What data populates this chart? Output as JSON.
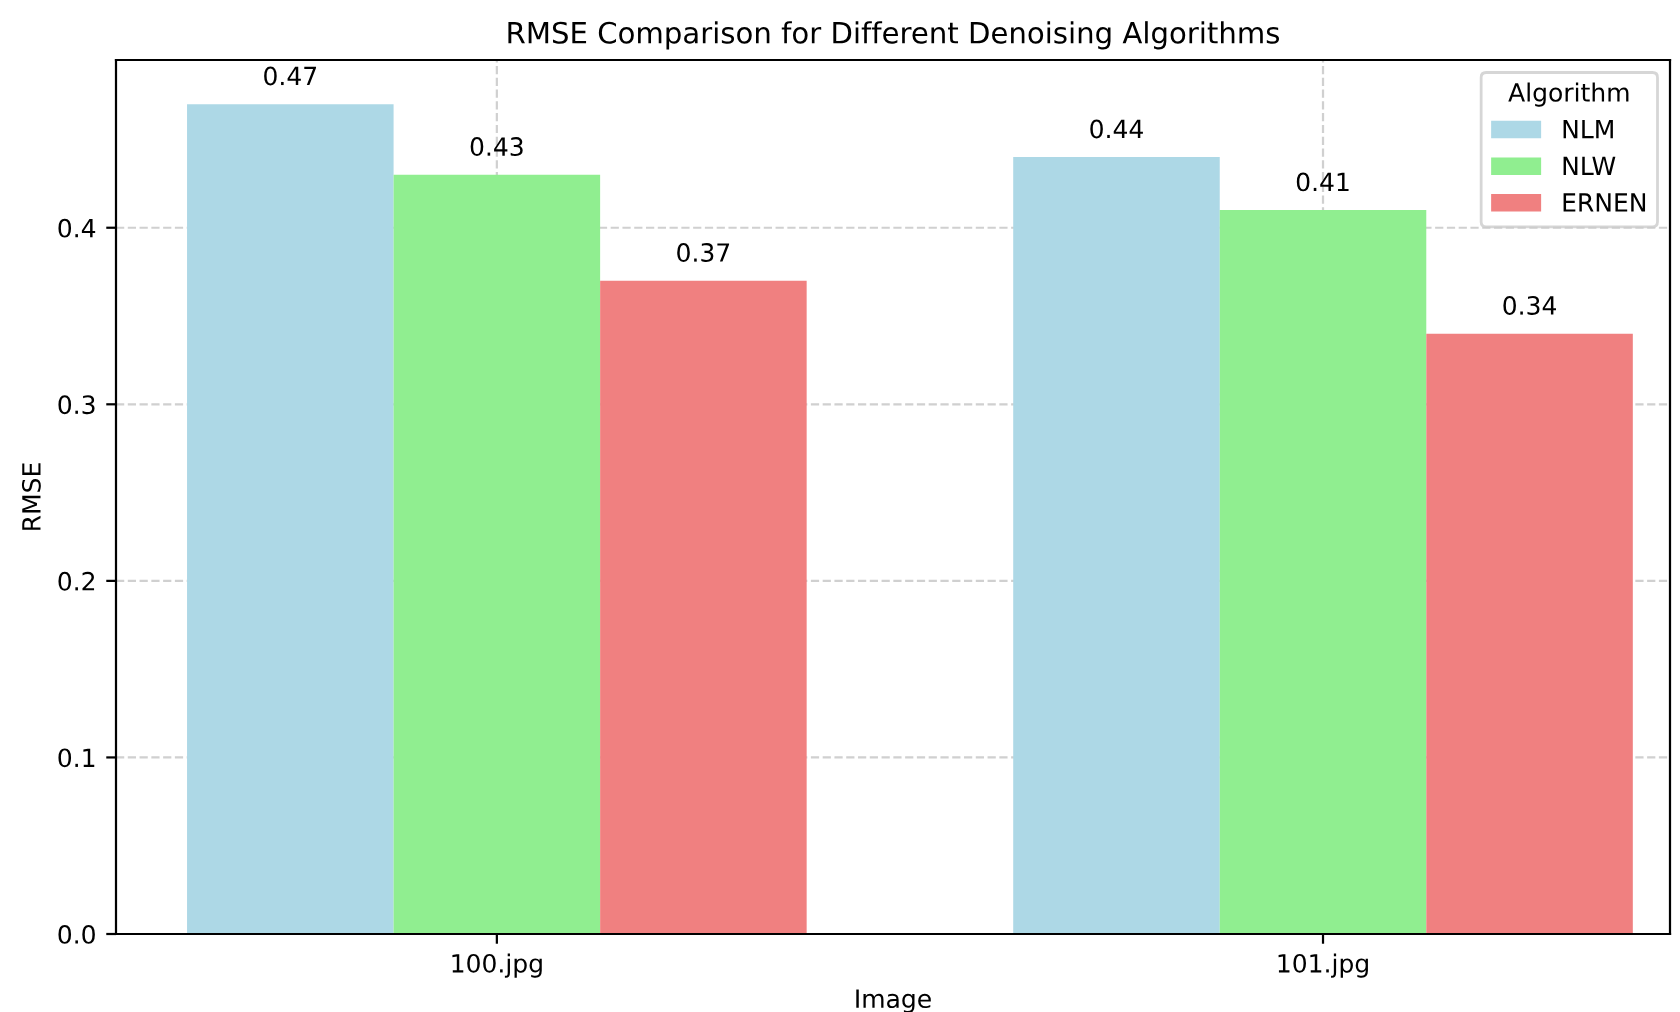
{
  "chart_data": {
    "type": "bar",
    "title": "RMSE Comparison for Different Denoising Algorithms",
    "xlabel": "Image",
    "ylabel": "RMSE",
    "legend_title": "Algorithm",
    "categories": [
      "100.jpg",
      "101.jpg"
    ],
    "series": [
      {
        "name": "NLM",
        "color": "#add8e6",
        "values": [
          0.47,
          0.44
        ]
      },
      {
        "name": "NLW",
        "color": "#90ee90",
        "values": [
          0.43,
          0.41
        ]
      },
      {
        "name": "ERNEN",
        "color": "#f08080",
        "values": [
          0.37,
          0.34
        ]
      }
    ],
    "ylim": [
      0,
      0.495
    ],
    "yticks": [
      {
        "value": 0,
        "label": "0.0"
      },
      0.1,
      0.2,
      0.3,
      0.4
    ],
    "grid": true,
    "legend": "top right",
    "data_labels": true
  }
}
